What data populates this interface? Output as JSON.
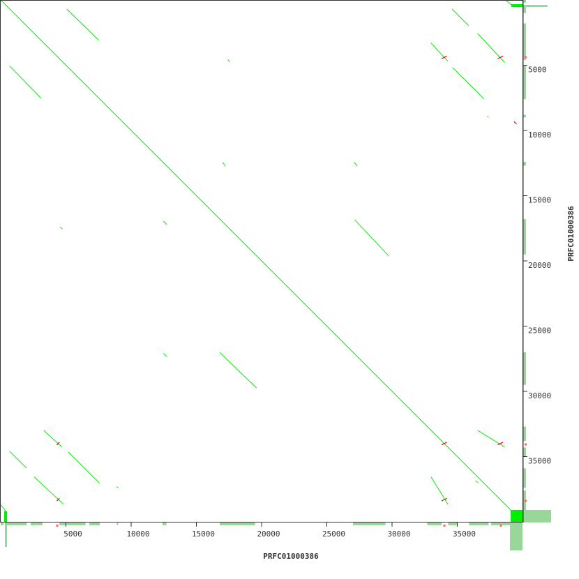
{
  "chart_data": {
    "type": "scatter",
    "subtype": "dotplot",
    "xlabel": "PRFC01000386",
    "ylabel": "PRFC01000386",
    "xlim": [
      0,
      40000
    ],
    "ylim": [
      0,
      40000
    ],
    "y_direction": "top-to-bottom",
    "x_ticks": [
      "5000",
      "10000",
      "15000",
      "20000",
      "25000",
      "30000",
      "35000"
    ],
    "y_ticks": [
      "5000",
      "10000",
      "15000",
      "20000",
      "25000",
      "30000",
      "35000"
    ],
    "grid": false,
    "colors": {
      "forward": "#00ee00",
      "reverse": "#ee0000",
      "coverage": "#99d699",
      "coverage_repeat": "#ff6666",
      "frame": "#333333"
    },
    "forward_segments": [
      [
        0,
        0,
        39500,
        39500
      ],
      [
        5060,
        690,
        7520,
        3090
      ],
      [
        34600,
        690,
        35870,
        1970
      ],
      [
        36560,
        2560,
        38640,
        4800
      ],
      [
        32990,
        3300,
        34270,
        4690
      ],
      [
        34640,
        5170,
        37040,
        7570
      ],
      [
        690,
        5060,
        3090,
        7520
      ],
      [
        17000,
        12420,
        17220,
        12740
      ],
      [
        27080,
        12420,
        27340,
        12740
      ],
      [
        12470,
        16950,
        12740,
        17220
      ],
      [
        27130,
        16840,
        29740,
        19610
      ],
      [
        16790,
        27020,
        19610,
        29740
      ],
      [
        12470,
        27100,
        12740,
        27330
      ],
      [
        17400,
        4550,
        17560,
        4750
      ],
      [
        4550,
        17400,
        4750,
        17560
      ],
      [
        690,
        34600,
        1970,
        35870
      ],
      [
        2560,
        36560,
        4800,
        38640
      ],
      [
        3300,
        32990,
        4690,
        34270
      ],
      [
        5170,
        34640,
        7570,
        37040
      ],
      [
        8900,
        37300,
        9000,
        37400
      ],
      [
        37300,
        8900,
        37400,
        9000
      ],
      [
        36560,
        32990,
        38640,
        34270
      ],
      [
        32990,
        36560,
        34270,
        38640
      ],
      [
        36400,
        36850,
        36600,
        37000
      ],
      [
        38700,
        0,
        39200,
        420
      ],
      [
        0,
        38700,
        420,
        39200
      ]
    ],
    "reverse_segments": [
      [
        33800,
        4300,
        34200,
        4500
      ],
      [
        38100,
        4300,
        38500,
        4500
      ],
      [
        39350,
        9500,
        39550,
        9320
      ],
      [
        33800,
        33900,
        34200,
        34100
      ],
      [
        38100,
        33900,
        38500,
        34100
      ],
      [
        4300,
        33900,
        4500,
        34100
      ],
      [
        4300,
        38200,
        4500,
        38400
      ],
      [
        33800,
        38200,
        34200,
        38400
      ]
    ],
    "coverage_x": [
      [
        0,
        200
      ],
      [
        300,
        1000
      ],
      [
        1000,
        2000
      ],
      [
        2300,
        3200
      ],
      [
        4500,
        6500
      ],
      [
        6800,
        7600
      ],
      [
        8900,
        9000
      ],
      [
        12400,
        12700
      ],
      [
        16800,
        19500
      ],
      [
        27000,
        29500
      ],
      [
        32700,
        33800
      ],
      [
        34300,
        35000
      ],
      [
        35900,
        37400
      ],
      [
        37600,
        39600
      ]
    ],
    "coverage_y": [
      [
        0,
        200
      ],
      [
        400,
        1000
      ],
      [
        1800,
        4600
      ],
      [
        5000,
        7600
      ],
      [
        8800,
        9000
      ],
      [
        12400,
        12700
      ],
      [
        16800,
        19500
      ],
      [
        27000,
        29500
      ],
      [
        32700,
        33800
      ],
      [
        34300,
        35000
      ],
      [
        35900,
        37400
      ],
      [
        37600,
        39600
      ]
    ]
  }
}
